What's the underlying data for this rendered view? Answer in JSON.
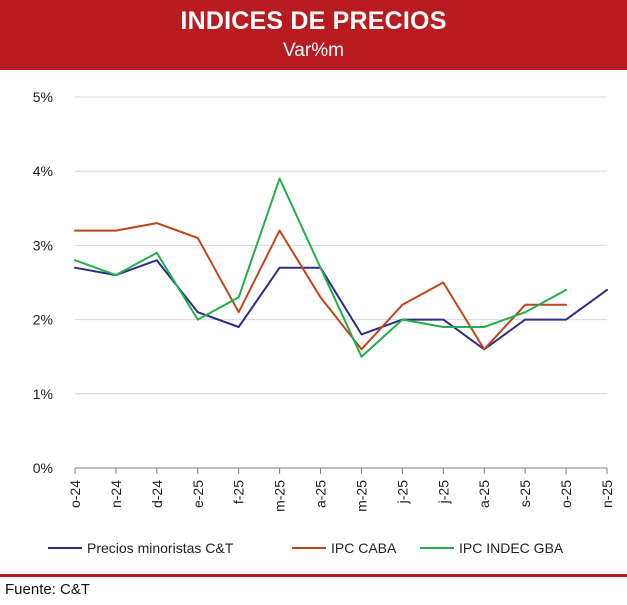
{
  "header": {
    "title": "INDICES DE PRECIOS",
    "subtitle": "Var%m"
  },
  "footer": {
    "source": "Fuente: C&T"
  },
  "colors": {
    "banner": "#b81c20",
    "series_1": "#2e2c86",
    "series_2": "#c0461a",
    "series_3": "#22b04c",
    "grid": "#d9d9d9",
    "axis": "#7f7f7f"
  },
  "chart_data": {
    "type": "line",
    "title": "INDICES DE PRECIOS",
    "subtitle": "Var%m",
    "categories": [
      "o-24",
      "n-24",
      "d-24",
      "e-25",
      "f-25",
      "m-25",
      "a-25",
      "m-25",
      "j-25",
      "j-25",
      "a-25",
      "s-25",
      "o-25",
      "n-25"
    ],
    "y_ticks": [
      "0%",
      "1%",
      "2%",
      "3%",
      "4%",
      "5%"
    ],
    "ylim": [
      0,
      5
    ],
    "grid": "horizontal",
    "legend_position": "bottom",
    "series": [
      {
        "name": "Precios minoristas C&T",
        "values": [
          2.7,
          2.6,
          2.8,
          2.1,
          1.9,
          2.7,
          2.7,
          1.8,
          2.0,
          2.0,
          1.6,
          2.0,
          2.0,
          2.4
        ]
      },
      {
        "name": "IPC CABA",
        "values": [
          3.2,
          3.2,
          3.3,
          3.1,
          2.1,
          3.2,
          2.3,
          1.6,
          2.2,
          2.5,
          1.6,
          2.2,
          2.2,
          null
        ]
      },
      {
        "name": "IPC INDEC GBA",
        "values": [
          2.8,
          2.6,
          2.9,
          2.0,
          2.3,
          3.9,
          2.7,
          1.5,
          2.0,
          1.9,
          1.9,
          2.1,
          2.4,
          null
        ]
      }
    ]
  }
}
